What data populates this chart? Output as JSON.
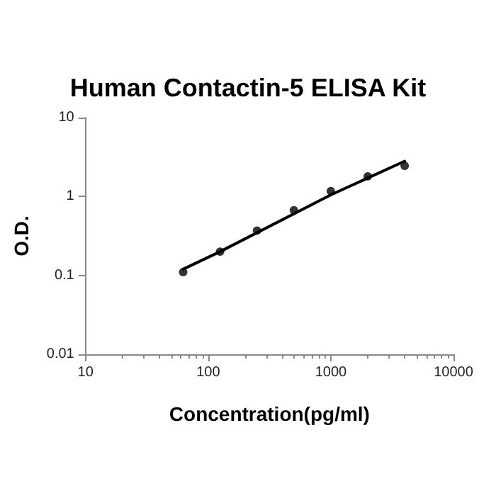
{
  "chart_data": {
    "type": "scatter",
    "title": "Human Contactin-5 ELISA Kit",
    "xlabel": "Concentration(pg/ml)",
    "ylabel": "O.D.",
    "log": "xy",
    "grid": false,
    "marker": "circle",
    "xlim": [
      10,
      10000
    ],
    "xticks": [
      10,
      100,
      1000,
      10000
    ],
    "ylim": [
      0.01,
      10
    ],
    "yticks": [
      0.01,
      0.1,
      1,
      10
    ],
    "series": [
      {
        "color": "#000000",
        "x": [
          62.5,
          125,
          250,
          500,
          1000,
          2000,
          4000
        ],
        "values": [
          0.11,
          0.2,
          0.37,
          0.67,
          1.17,
          1.8,
          2.45
        ]
      },
      {
        "type": "line",
        "color": "#000000",
        "marker": "none",
        "line_style": "solid",
        "x": [
          62.5,
          125,
          1000,
          4000
        ],
        "values": [
          0.12,
          0.2,
          1.05,
          2.8
        ]
      }
    ]
  }
}
